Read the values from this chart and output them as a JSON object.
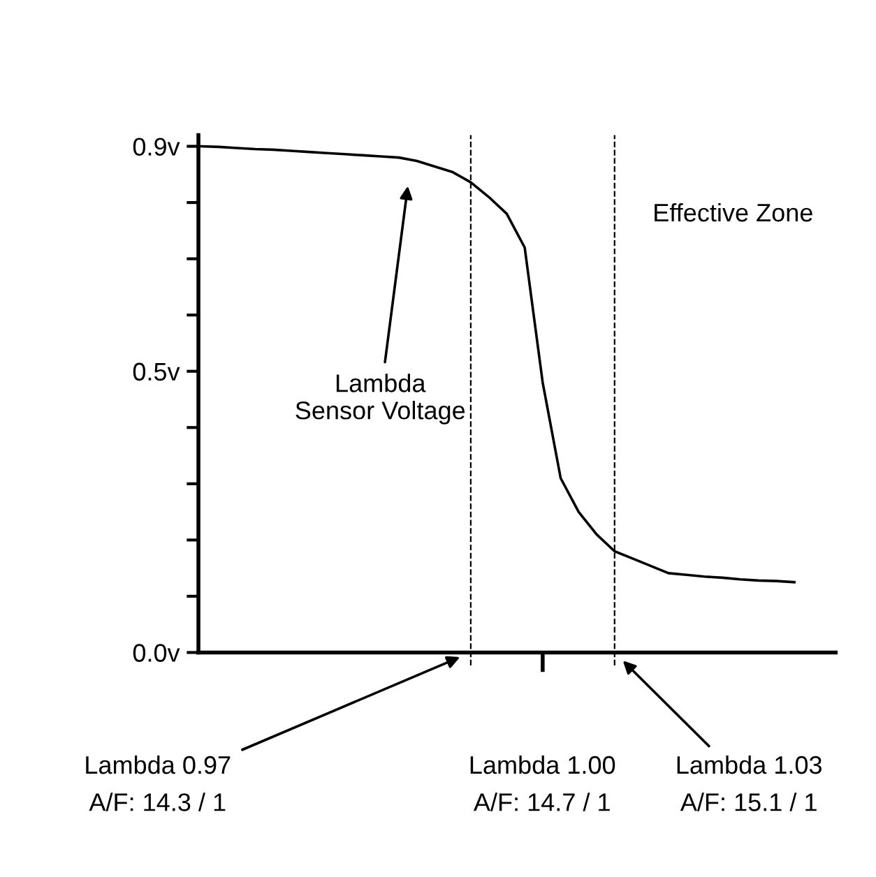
{
  "chart_data": {
    "type": "line",
    "categories": [
      null,
      null,
      null,
      null,
      null,
      null,
      null,
      null,
      null,
      null,
      null,
      null,
      null,
      null,
      null,
      null,
      null,
      null,
      null,
      null,
      null,
      null,
      null,
      null,
      null,
      null,
      null,
      null,
      null,
      null,
      null,
      null,
      null,
      null
    ],
    "series": [
      {
        "color": "#000000",
        "values": [
          0.9,
          0.899,
          0.897,
          0.895,
          0.894,
          0.892,
          0.89,
          0.888,
          0.886,
          0.884,
          0.882,
          0.88,
          0.874,
          0.864,
          0.854,
          0.836,
          0.81,
          0.78,
          0.72,
          0.48,
          0.31,
          0.25,
          0.21,
          0.18,
          0.167,
          0.154,
          0.141,
          0.138,
          0.135,
          0.133,
          0.13,
          0.128,
          0.127,
          0.125
        ]
      }
    ],
    "ylim": [
      0,
      0.92
    ],
    "yticks": [
      {
        "value": 0.0,
        "label": "0.0v"
      },
      {
        "value": 0.1,
        "label": null
      },
      {
        "value": 0.2,
        "label": null
      },
      {
        "value": 0.3,
        "label": null
      },
      {
        "value": 0.4,
        "label": null
      },
      {
        "value": 0.5,
        "label": "0.5v"
      },
      {
        "value": 0.6,
        "label": null
      },
      {
        "value": 0.7,
        "label": null
      },
      {
        "value": 0.8,
        "label": null
      },
      {
        "value": 0.9,
        "label": "0.9v"
      }
    ],
    "annotations": [
      "Lambda\nSensor Voltage",
      "Effective Zone",
      "Lambda 0.97\nA/F: 14.3 / 1",
      "Lambda 1.00\nA/F: 14.7 / 1",
      "Lambda 1.03\nA/F: 15.1 / 1"
    ],
    "grid": false,
    "legend": false,
    "marker": "none",
    "line_style": "solid"
  }
}
